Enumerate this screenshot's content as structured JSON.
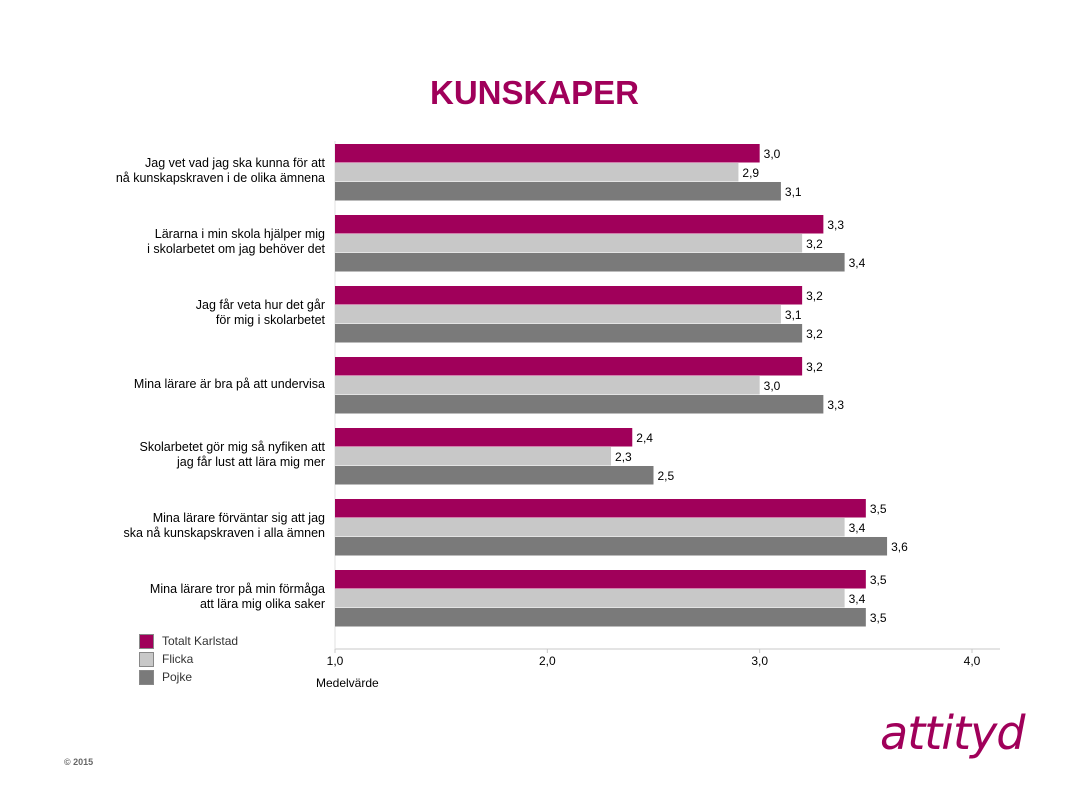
{
  "title": "KUNSKAPER",
  "copyright": "© 2015",
  "logo_text": "attityd",
  "colors": {
    "totalt": "#a0005a",
    "flicka": "#c8c8c8",
    "pojke": "#7a7a7a",
    "title": "#a0005a"
  },
  "chart_data": {
    "type": "bar",
    "orientation": "horizontal",
    "categories": [
      [
        "Jag vet vad jag ska kunna för att",
        "nå kunskapskraven i de olika ämnena"
      ],
      [
        "Lärarna i min skola hjälper mig",
        "i skolarbetet om jag behöver det"
      ],
      [
        "Jag får veta hur det går",
        "för mig i skolarbetet"
      ],
      [
        "Mina lärare är bra på att undervisa"
      ],
      [
        "Skolarbetet gör mig så nyfiken att",
        "jag får lust att lära mig mer"
      ],
      [
        "Mina lärare förväntar sig att jag",
        "ska nå kunskapskraven i alla ämnen"
      ],
      [
        "Mina lärare tror på min förmåga",
        "att lära mig olika saker"
      ]
    ],
    "series": [
      {
        "name": "Totalt Karlstad",
        "color": "#a0005a",
        "values": [
          3.0,
          3.3,
          3.2,
          3.2,
          2.4,
          3.5,
          3.5
        ],
        "labels": [
          "3,0",
          "3,3",
          "3,2",
          "3,2",
          "2,4",
          "3,5",
          "3,5"
        ]
      },
      {
        "name": "Flicka",
        "color": "#c8c8c8",
        "values": [
          2.9,
          3.2,
          3.1,
          3.0,
          2.3,
          3.4,
          3.4
        ],
        "labels": [
          "2,9",
          "3,2",
          "3,1",
          "3,0",
          "2,3",
          "3,4",
          "3,4"
        ]
      },
      {
        "name": "Pojke",
        "color": "#7a7a7a",
        "values": [
          3.1,
          3.4,
          3.2,
          3.3,
          2.5,
          3.6,
          3.5
        ],
        "labels": [
          "3,1",
          "3,4",
          "3,2",
          "3,3",
          "2,5",
          "3,6",
          "3,5"
        ]
      }
    ],
    "xlim": [
      1.0,
      4.0
    ],
    "xticks": [
      1.0,
      2.0,
      3.0,
      4.0
    ],
    "xtick_labels": [
      "1,0",
      "2,0",
      "3,0",
      "4,0"
    ],
    "xlabel": "Medelvärde",
    "legend_position": "bottom-left"
  }
}
